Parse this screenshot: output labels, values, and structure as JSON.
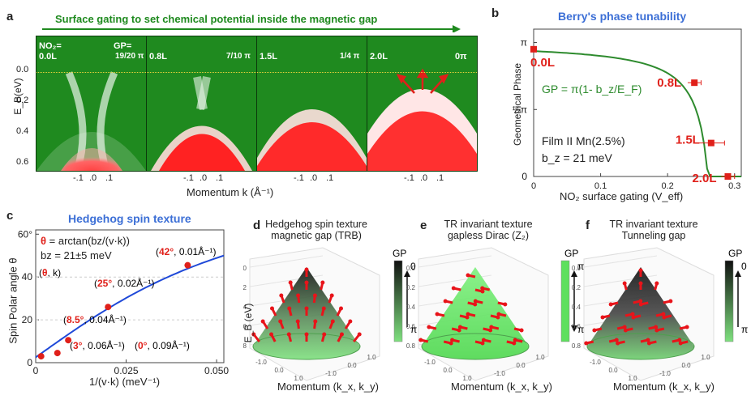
{
  "panel_a": {
    "label": "a",
    "banner": "Surface gating to set chemical potential inside the magnetic gap",
    "ylabel": "E_B(eV)",
    "xlabel": "Momentum k (Å⁻¹)",
    "yticks": [
      "0.0",
      "0.2",
      "0.4",
      "0.6"
    ],
    "xticks": [
      "-.1",
      ".0",
      ".1"
    ],
    "panels": [
      {
        "dose": "NO₂=",
        "dose2": "0.0L",
        "gp_label": "GP=",
        "gp": "19/20 π"
      },
      {
        "dose": "0.8L",
        "gp": "7/10 π"
      },
      {
        "dose": "1.5L",
        "gp": "1/4 π"
      },
      {
        "dose": "2.0L",
        "gp": "0π"
      }
    ]
  },
  "panel_b": {
    "label": "b",
    "title": "Berry's phase tunability",
    "ylabel": "Geometrical Phase",
    "xlabel": "NO₂ surface gating (V_eff)",
    "ytick_labels": [
      "π",
      "½π",
      "0"
    ],
    "xtick_labels": [
      "0",
      "0.1",
      "0.2",
      "0.3"
    ],
    "formula": "GP = π(1- b_z/E_F)",
    "film": "Film II    Mn(2.5%)",
    "bz": "b_z = 21 meV",
    "points": [
      "0.0L",
      "0.8L",
      "1.5L",
      "2.0L"
    ]
  },
  "panel_c": {
    "label": "c",
    "title": "Hedgehog spin texture",
    "ylabel": "Spin Polar angle θ",
    "xlabel": "1/(v·k)  (meV⁻¹)",
    "formula_theta": "θ",
    "formula_rest": " = arctan(bz/(v·k))",
    "bz": "bz = 21±5 meV",
    "ytick_labels": [
      "0",
      "20",
      "40",
      "60°"
    ],
    "xtick_labels": [
      "0",
      "0.025",
      "0.050"
    ],
    "annotations": [
      {
        "angle": "θ",
        "rest": ", k)",
        "open": "("
      },
      {
        "angle": "42°",
        "rest": ", 0.01Å⁻¹)",
        "open": "("
      },
      {
        "angle": "25°",
        "rest": ", 0.02Å⁻¹)",
        "open": "("
      },
      {
        "angle": "8.5°",
        "rest": ", 0.04Å⁻¹)",
        "open": "("
      },
      {
        "angle": "3°",
        "rest": ", 0.06Å⁻¹)",
        "open": "("
      },
      {
        "angle": "0°",
        "rest": ", 0.09Å⁻¹)",
        "open": "("
      }
    ]
  },
  "panel_d": {
    "label": "d",
    "title1": "Hedgehog spin texture",
    "title2": "magnetic gap (TRB)",
    "gp_label": "GP",
    "gp_top": "0",
    "gp_bottom": "π",
    "ylabel": "E_B (eV)",
    "xlabel": "Momentum (k_x, k_y)"
  },
  "panel_e": {
    "label": "e",
    "title1": "TR invariant texture",
    "title2": "gapless Dirac (Z₂)",
    "gp_label": "GP",
    "gp_top": "π",
    "gp_bottom": "π",
    "xlabel": "Momentum (k_x, k_y)"
  },
  "panel_f": {
    "label": "f",
    "title1": "TR invariant texture",
    "title2": "Tunneling gap",
    "gp_label": "GP",
    "gp_top": "0",
    "gp_bottom": "π",
    "xlabel": "Momentum (k_x, k_y)"
  },
  "cone_axis_ticks": {
    "z": [
      "0.0",
      "0.2",
      "0.4",
      "0.6",
      "0.8"
    ],
    "kx": [
      "-1.0",
      "0.0",
      "1.0"
    ],
    "ky": [
      "-1.0",
      "0.0",
      "1.0"
    ]
  },
  "chart_data": [
    {
      "type": "line",
      "title": "Berry's phase tunability",
      "xlabel": "NO2 surface gating (V_eff)",
      "ylabel": "Geometrical Phase (units of π)",
      "xlim": [
        0,
        0.31
      ],
      "ylim": [
        0,
        1.1
      ],
      "series": [
        {
          "name": "data",
          "x": [
            0.0,
            0.24,
            0.265,
            0.29
          ],
          "y": [
            0.95,
            0.7,
            0.25,
            0.0
          ],
          "labels": [
            "0.0L",
            "0.8L",
            "1.5L",
            "2.0L"
          ],
          "xerr": [
            0.0,
            0.01,
            0.02,
            0.01
          ]
        },
        {
          "name": "fit",
          "formula": "GP = π(1 - b_z/E_F)"
        }
      ]
    },
    {
      "type": "scatter",
      "title": "Hedgehog spin texture",
      "xlabel": "1/(v·k) (meV⁻¹)",
      "ylabel": "Spin Polar angle θ (deg)",
      "xlim": [
        0,
        0.052
      ],
      "ylim": [
        0,
        62
      ],
      "series": [
        {
          "name": "data",
          "x": [
            0.0015,
            0.006,
            0.009,
            0.02,
            0.042
          ],
          "y": [
            3,
            4.5,
            10.5,
            26,
            45.5
          ]
        },
        {
          "name": "fit",
          "formula": "θ = arctan(bz/(v·k)), bz = 21 meV"
        }
      ]
    }
  ],
  "colors": {
    "green": "#1f8a1f",
    "red": "#e0201a",
    "blue": "#3c6fd6",
    "fit_green": "#2e8b2e",
    "fit_blue": "#1f49d8"
  }
}
